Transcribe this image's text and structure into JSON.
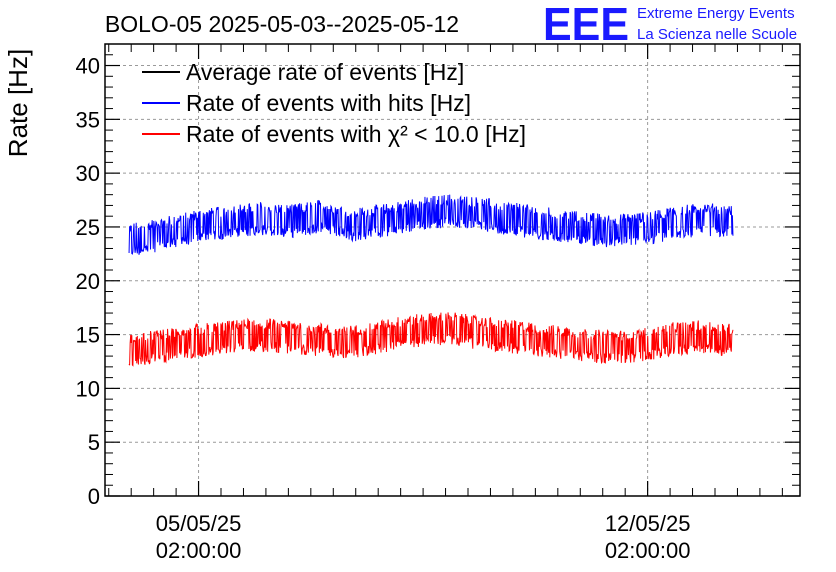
{
  "chart_data": {
    "type": "line",
    "title": "BOLO-05 2025-05-03--2025-05-12",
    "ylabel": "Rate [Hz]",
    "xlabel": "",
    "ylim": [
      0,
      42
    ],
    "yticks": [
      0,
      5,
      10,
      15,
      20,
      25,
      30,
      35,
      40
    ],
    "xlim": [
      "2025-05-03T15:00:00",
      "2025-05-14T11:00:00"
    ],
    "xticks": [
      {
        "date": "05/05/25",
        "time": "02:00:00"
      },
      {
        "date": "12/05/25",
        "time": "02:00:00"
      }
    ],
    "grid": true,
    "legend_position": "top-left",
    "logo": {
      "text": "EEE",
      "line1": "Extreme Energy Events",
      "line2": "La Scienza nelle Scuole",
      "color": "#1a1aff"
    },
    "series": [
      {
        "name": "Average rate of events [Hz]",
        "color": "#000000",
        "x": [],
        "values": []
      },
      {
        "name": "Rate of events with hits [Hz]",
        "color": "#0000ff",
        "x": [
          "2025-05-04T00:00",
          "2025-05-04T12:00",
          "2025-05-05T00:00",
          "2025-05-05T12:00",
          "2025-05-06T00:00",
          "2025-05-06T12:00",
          "2025-05-07T00:00",
          "2025-05-07T12:00",
          "2025-05-08T00:00",
          "2025-05-08T12:00",
          "2025-05-09T00:00",
          "2025-05-09T12:00",
          "2025-05-10T00:00",
          "2025-05-10T12:00",
          "2025-05-11T00:00",
          "2025-05-11T12:00",
          "2025-05-12T00:00",
          "2025-05-12T12:00",
          "2025-05-13T00:00",
          "2025-05-13T10:00"
        ],
        "values": [
          23.8,
          24.3,
          25.0,
          25.4,
          25.8,
          25.5,
          26.0,
          25.2,
          25.6,
          26.2,
          26.5,
          26.2,
          25.7,
          25.3,
          24.9,
          24.6,
          24.8,
          25.4,
          25.7,
          25.4
        ]
      },
      {
        "name": "Rate of events with χ² < 10.0 [Hz]",
        "color": "#ff0000",
        "x": [
          "2025-05-04T00:00",
          "2025-05-04T12:00",
          "2025-05-05T00:00",
          "2025-05-05T12:00",
          "2025-05-06T00:00",
          "2025-05-06T12:00",
          "2025-05-07T00:00",
          "2025-05-07T12:00",
          "2025-05-08T00:00",
          "2025-05-08T12:00",
          "2025-05-09T00:00",
          "2025-05-09T12:00",
          "2025-05-10T00:00",
          "2025-05-10T12:00",
          "2025-05-11T00:00",
          "2025-05-11T12:00",
          "2025-05-12T00:00",
          "2025-05-12T12:00",
          "2025-05-13T00:00",
          "2025-05-13T10:00"
        ],
        "values": [
          13.6,
          13.9,
          14.4,
          14.7,
          15.0,
          14.8,
          14.5,
          14.3,
          14.9,
          15.4,
          15.6,
          15.1,
          14.8,
          14.4,
          14.1,
          13.8,
          14.0,
          14.6,
          14.8,
          14.4
        ]
      }
    ]
  }
}
